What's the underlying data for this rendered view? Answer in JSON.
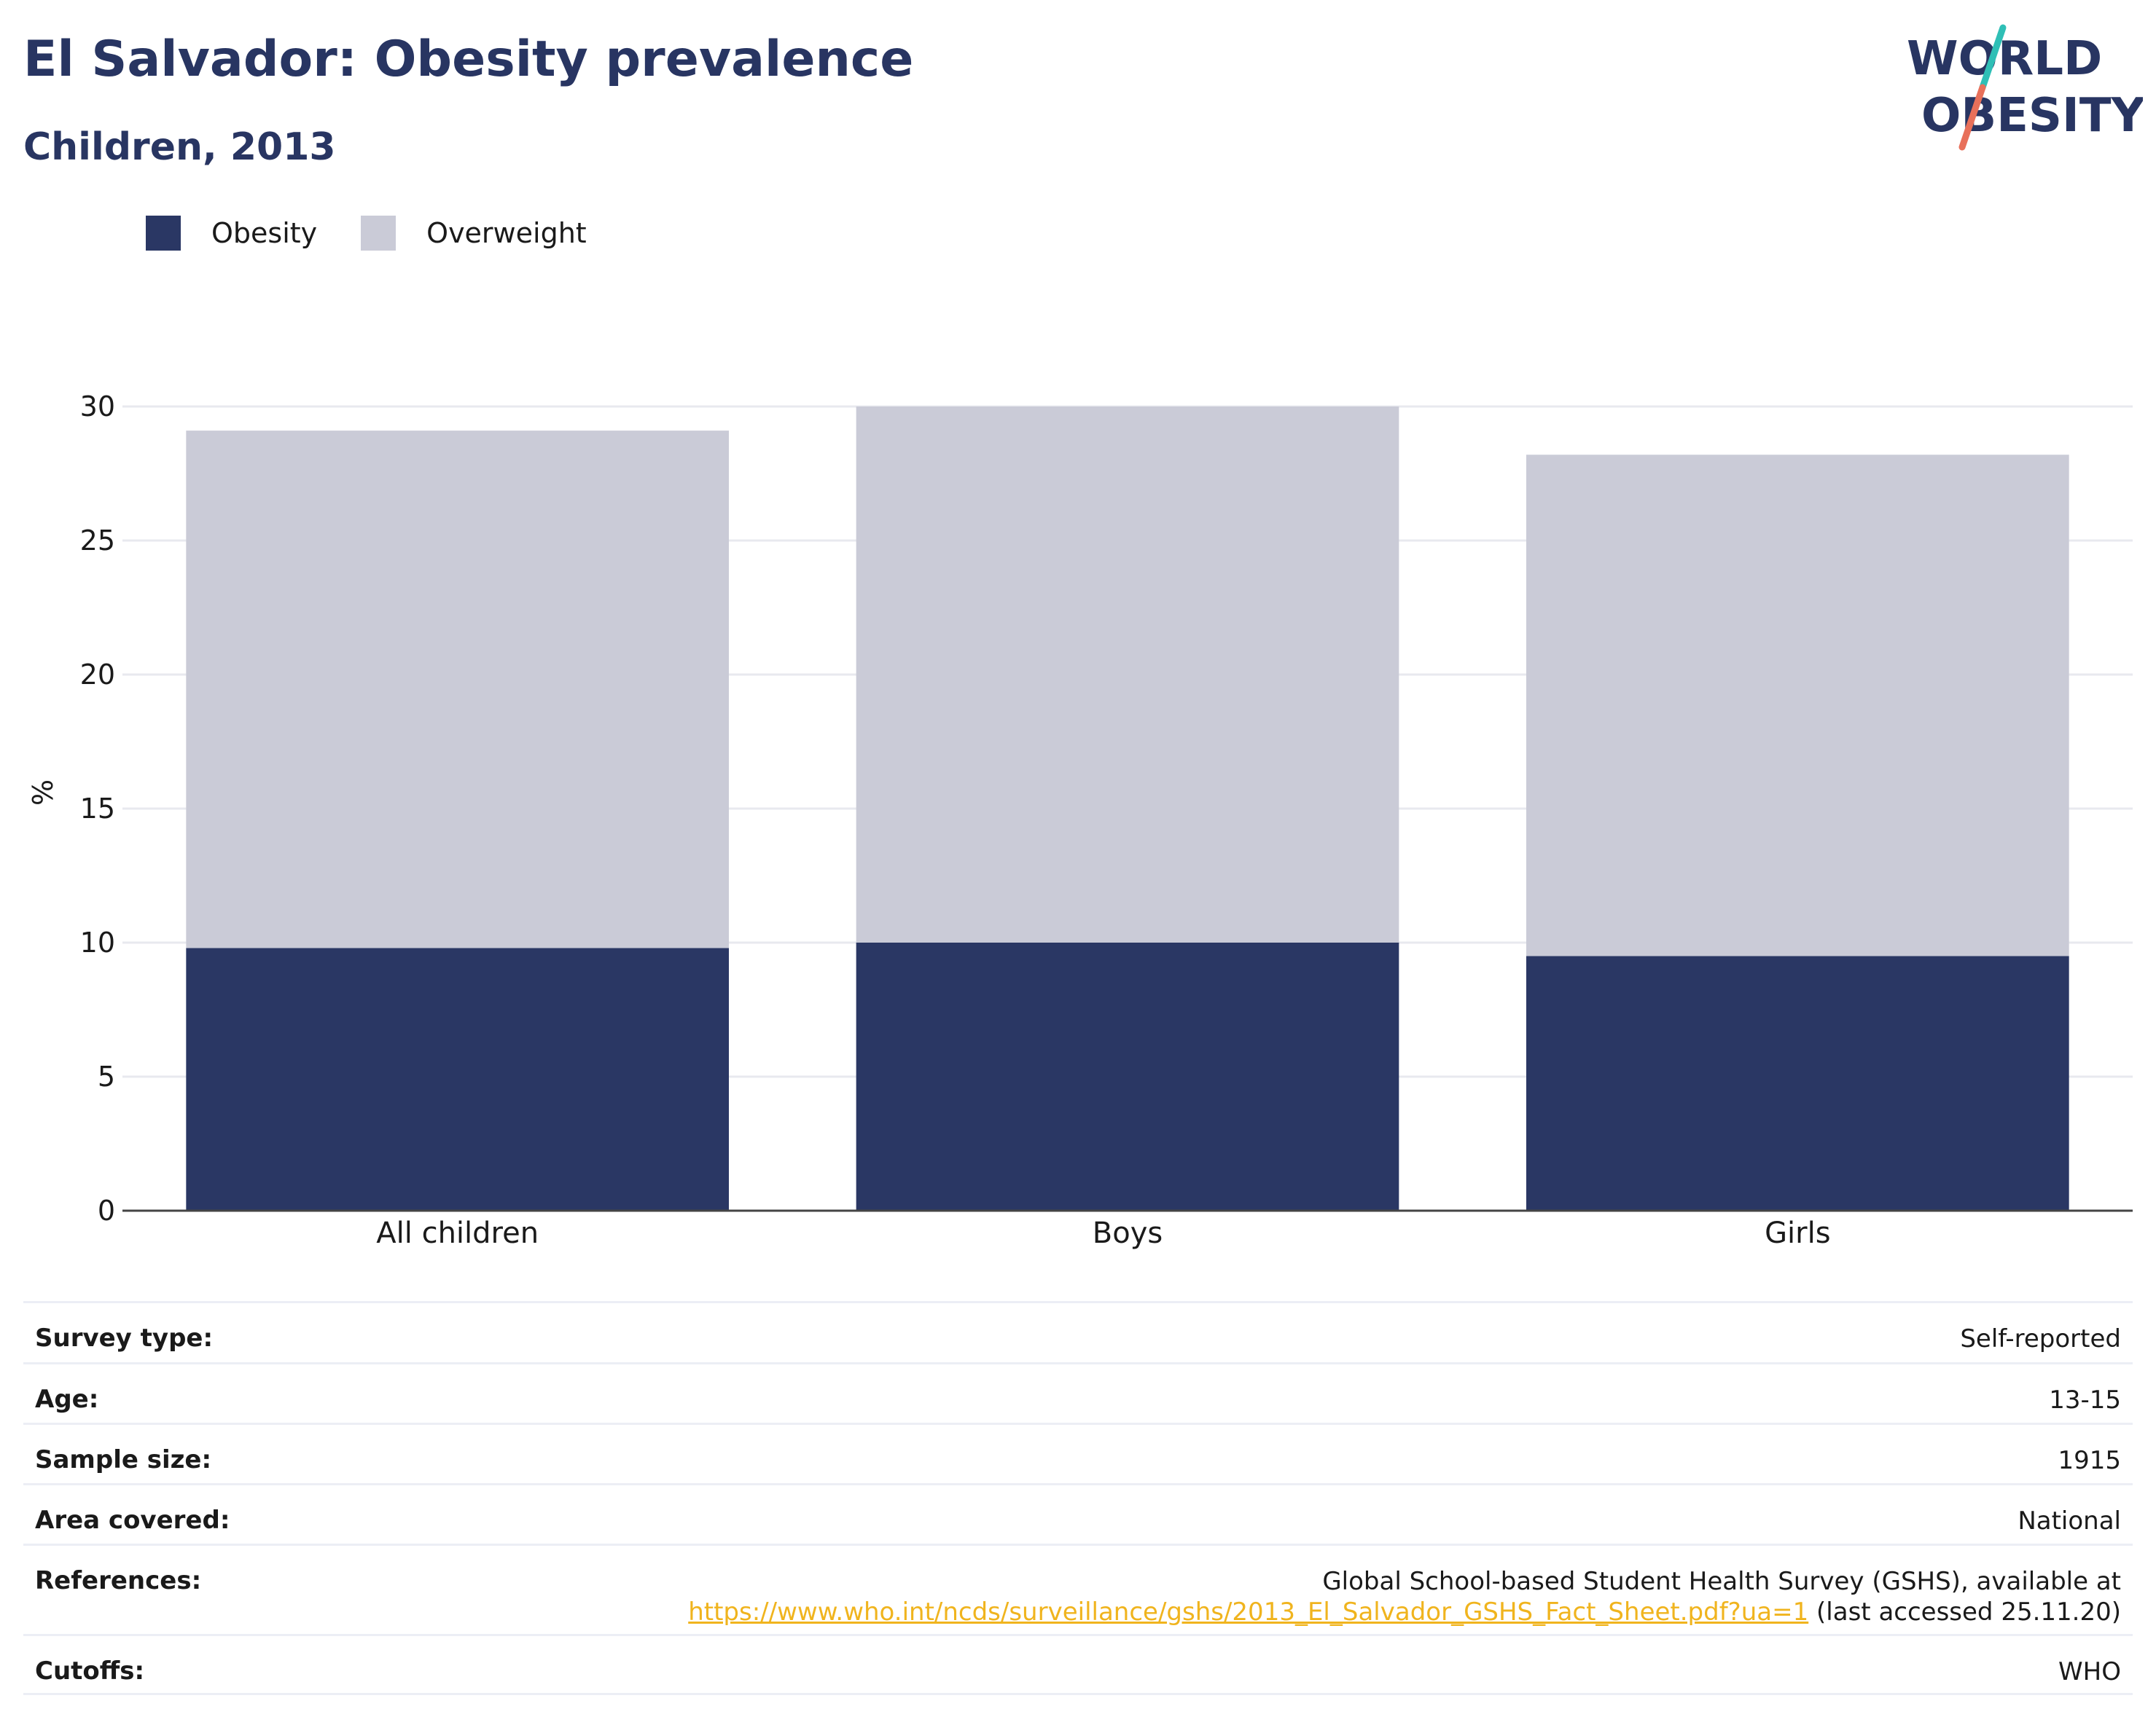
{
  "header": {
    "title": "El Salvador: Obesity prevalence",
    "subtitle": "Children, 2013"
  },
  "logo": {
    "line1": "WORLD",
    "line2": "OBESITY",
    "colors": {
      "text": "#283562",
      "slash_top": "#2fbfb6",
      "slash_bottom": "#e8705a"
    }
  },
  "legend": {
    "items": [
      {
        "label": "Obesity",
        "color": "#2a3764"
      },
      {
        "label": "Overweight",
        "color": "#cacbd7"
      }
    ]
  },
  "chart_data": {
    "type": "bar",
    "stacked": true,
    "categories": [
      "All children",
      "Boys",
      "Girls"
    ],
    "series": [
      {
        "name": "Obesity",
        "color": "#2a3764",
        "values": [
          9.8,
          10.0,
          9.5
        ]
      },
      {
        "name": "Overweight",
        "color": "#cacbd7",
        "values": [
          19.3,
          20.0,
          18.7
        ]
      }
    ],
    "ylabel": "%",
    "ylim": [
      0,
      30
    ],
    "yticks": [
      "0",
      "5",
      "10",
      "15",
      "20",
      "25",
      "30"
    ],
    "grid": true,
    "legend_position": "top-left"
  },
  "meta": {
    "rows": [
      {
        "label": "Survey type:",
        "value": "Self-reported"
      },
      {
        "label": "Age:",
        "value": "13-15"
      },
      {
        "label": "Sample size:",
        "value": "1915"
      },
      {
        "label": "Area covered:",
        "value": "National"
      },
      {
        "label": "References:",
        "value_line1": "Global School-based Student Health Survey (GSHS), available at",
        "link": "https://www.who.int/ncds/surveillance/gshs/2013_El_Salvador_GSHS_Fact_Sheet.pdf?ua=1",
        "after_link": " (last accessed 25.11.20)"
      },
      {
        "label": "Cutoffs:",
        "value": "WHO"
      }
    ]
  }
}
